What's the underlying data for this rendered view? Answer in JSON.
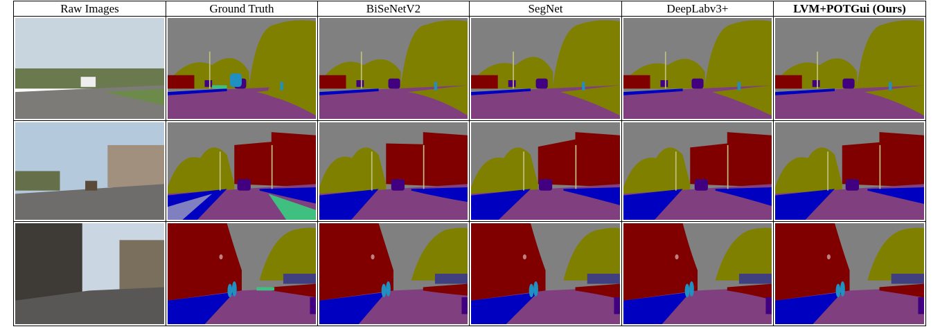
{
  "figure": {
    "columns": [
      {
        "label": "Raw Images",
        "bold": false
      },
      {
        "label": "Ground Truth",
        "bold": false
      },
      {
        "label": "BiSeNetV2",
        "bold": false
      },
      {
        "label": "SegNet",
        "bold": false
      },
      {
        "label": "DeepLabv3+",
        "bold": false
      },
      {
        "label": "LVM+POTGui (Ours)",
        "bold": true
      }
    ],
    "rows": 3
  },
  "palette": {
    "sky": "#808080",
    "tree": "#808000",
    "building": "#800000",
    "road": "#804080",
    "sidewalk": "#0000c0",
    "car": "#400080",
    "pedestrian": "#2090c0",
    "pole": "#c0c080",
    "fence": "#404080",
    "sign": "#c08080",
    "lane_marking": "#40c080",
    "sidewalk_light": "#8080c0"
  }
}
